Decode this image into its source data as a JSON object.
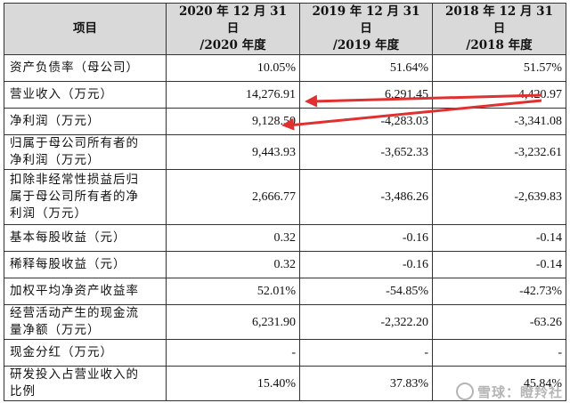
{
  "table": {
    "headers": [
      {
        "line1": "项目",
        "line2": ""
      },
      {
        "line1": "2020 年 12 月 31 日",
        "line2": "/2020 年度"
      },
      {
        "line1": "2019 年 12 月 31 日",
        "line2": "/2019 年度"
      },
      {
        "line1": "2018 年 12 月 31 日",
        "line2": "/2018 年度"
      }
    ],
    "rows": [
      {
        "label": [
          "资产负债率（母公司）"
        ],
        "v2020": "10.05%",
        "v2019": "51.64%",
        "v2018": "51.57%"
      },
      {
        "label": [
          "营业收入（万元）"
        ],
        "v2020": "14,276.91",
        "v2019": "6,291.45",
        "v2018": "4,420.97"
      },
      {
        "label": [
          "净利润（万元）"
        ],
        "v2020": "9,128.50",
        "v2019": "-4,283.03",
        "v2018": "-3,341.08"
      },
      {
        "label": [
          "归属于母公司所有者的",
          "净利润（万元）"
        ],
        "v2020": "9,443.93",
        "v2019": "-3,652.33",
        "v2018": "-3,232.61"
      },
      {
        "label": [
          "扣除非经常性损益后归",
          "属于母公司所有者的净",
          "利润（万元）"
        ],
        "v2020": "2,666.77",
        "v2019": "-3,486.26",
        "v2018": "-2,639.83"
      },
      {
        "label": [
          "基本每股收益（元）"
        ],
        "v2020": "0.32",
        "v2019": "-0.16",
        "v2018": "-0.14"
      },
      {
        "label": [
          "稀释每股收益（元）"
        ],
        "v2020": "0.32",
        "v2019": "-0.16",
        "v2018": "-0.14"
      },
      {
        "label": [
          "加权平均净资产收益率"
        ],
        "v2020": "52.01%",
        "v2019": "-54.85%",
        "v2018": "-42.73%"
      },
      {
        "label": [
          "经营活动产生的现金流",
          "量净额（万元）"
        ],
        "v2020": "6,231.90",
        "v2019": "-2,322.20",
        "v2018": "-63.26"
      },
      {
        "label": [
          "现金分红（万元）"
        ],
        "v2020": "-",
        "v2019": "-",
        "v2018": "-"
      },
      {
        "label": [
          "研发投入占营业收入的",
          "比例"
        ],
        "v2020": "15.40%",
        "v2019": "37.83%",
        "v2018": "45.84%"
      }
    ]
  },
  "annotation": {
    "arrow_color": "#e03030"
  },
  "watermark": {
    "text": "雪球：瞪羚社"
  }
}
